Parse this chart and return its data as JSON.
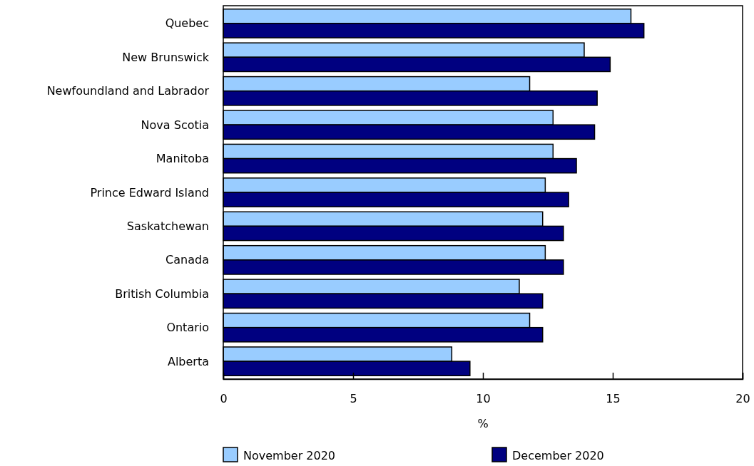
{
  "chart_data": {
    "type": "bar",
    "orientation": "horizontal",
    "xlabel": "%",
    "categories": [
      "Quebec",
      "New Brunswick",
      "Newfoundland and Labrador",
      "Nova Scotia",
      "Manitoba",
      "Prince Edward Island",
      "Saskatchewan",
      "Canada",
      "British Columbia",
      "Ontario",
      "Alberta"
    ],
    "series": [
      {
        "name": "November 2020",
        "color": "#99ccff",
        "values": [
          15.7,
          13.9,
          11.8,
          12.7,
          12.7,
          12.4,
          12.3,
          12.4,
          11.4,
          11.8,
          8.8
        ]
      },
      {
        "name": "December 2020",
        "color": "#000080",
        "values": [
          16.2,
          14.9,
          14.4,
          14.3,
          13.6,
          13.3,
          13.1,
          13.1,
          12.3,
          12.3,
          9.5
        ]
      }
    ],
    "xlim": [
      0,
      20
    ],
    "xticks": [
      0,
      5,
      10,
      15,
      20
    ],
    "grid": false,
    "legend": "bottom"
  }
}
